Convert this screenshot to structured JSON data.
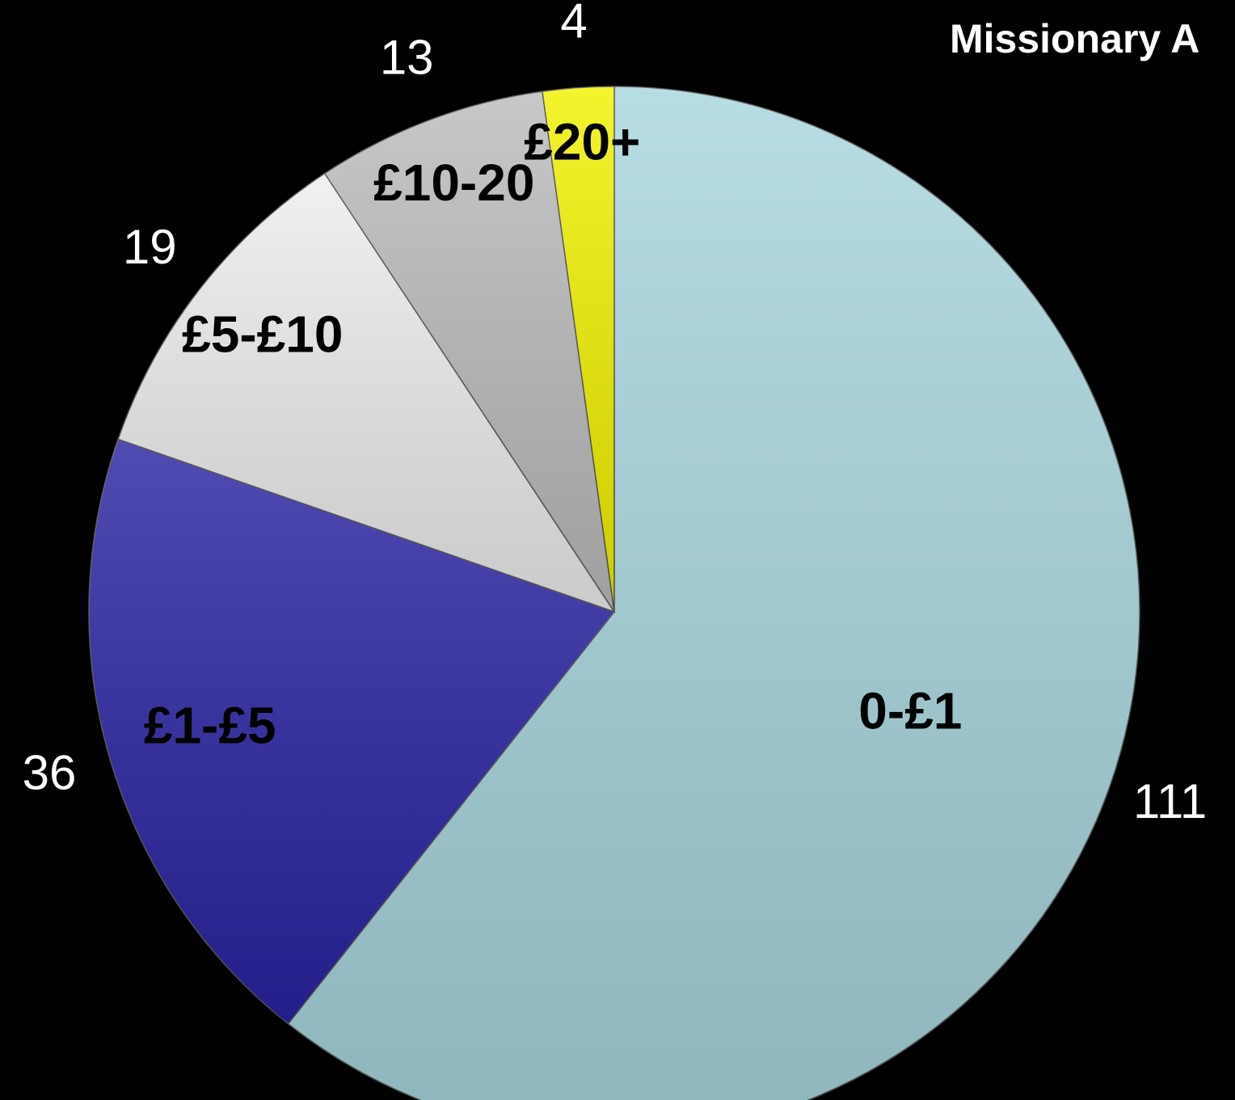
{
  "chart_data": {
    "type": "pie",
    "title": "Missionary A",
    "categories": [
      "0-£1",
      "£1-£5",
      "£5-£10",
      "£10-20",
      "£20+"
    ],
    "values": [
      111,
      36,
      19,
      13,
      4
    ],
    "colors": [
      "#a8d6de",
      "#2a24a2",
      "#eeeeee",
      "#bcbcbc",
      "#f2f200"
    ]
  }
}
